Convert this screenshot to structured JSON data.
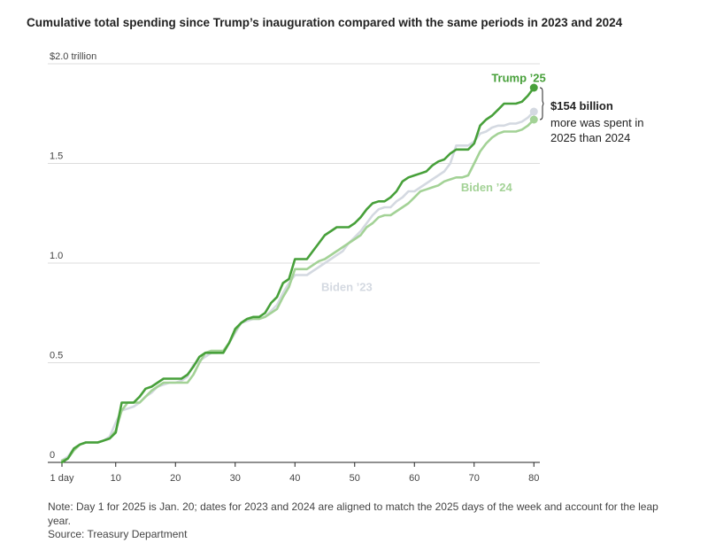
{
  "title": "Cumulative total spending since Trump’s inauguration compared with the same periods in 2023 and 2024",
  "note": "Note: Day 1 for 2025 is Jan. 20; dates for 2023 and 2024 are aligned to match the 2025 days of the week and account for the leap year.",
  "source": "Source: Treasury Department",
  "colors": {
    "trump25": "#47a03a",
    "biden24": "#a3d296",
    "biden23": "#d4d9e1",
    "grid": "#dcdcdc",
    "axis": "#222222"
  },
  "annotation": {
    "headline": "$154 billion",
    "line1": "more was spent in",
    "line2": "2025 than 2024"
  },
  "chart_data": {
    "type": "line",
    "xlabel": "",
    "ylabel": "",
    "xlim": [
      1,
      81
    ],
    "ylim": [
      0,
      2.0
    ],
    "grid": true,
    "x_ticks": [
      {
        "value": 1,
        "label": "1 day"
      },
      {
        "value": 10,
        "label": "10"
      },
      {
        "value": 20,
        "label": "20"
      },
      {
        "value": 30,
        "label": "30"
      },
      {
        "value": 40,
        "label": "40"
      },
      {
        "value": 50,
        "label": "50"
      },
      {
        "value": 60,
        "label": "60"
      },
      {
        "value": 70,
        "label": "70"
      },
      {
        "value": 80,
        "label": "80"
      }
    ],
    "y_ticks": [
      {
        "value": 0,
        "label": "0"
      },
      {
        "value": 0.5,
        "label": "0.5"
      },
      {
        "value": 1.0,
        "label": "1.0"
      },
      {
        "value": 1.5,
        "label": "1.5"
      },
      {
        "value": 2.0,
        "label": "$2.0 trillion"
      }
    ],
    "series": [
      {
        "name": "Biden ’23",
        "color": "#d4d9e1",
        "points": [
          [
            1,
            0.01
          ],
          [
            2,
            0.03
          ],
          [
            3,
            0.07
          ],
          [
            4,
            0.09
          ],
          [
            5,
            0.1
          ],
          [
            6,
            0.1
          ],
          [
            7,
            0.1
          ],
          [
            8,
            0.11
          ],
          [
            9,
            0.13
          ],
          [
            10,
            0.2
          ],
          [
            11,
            0.26
          ],
          [
            12,
            0.27
          ],
          [
            13,
            0.28
          ],
          [
            14,
            0.3
          ],
          [
            15,
            0.33
          ],
          [
            16,
            0.35
          ],
          [
            17,
            0.38
          ],
          [
            18,
            0.39
          ],
          [
            19,
            0.4
          ],
          [
            20,
            0.4
          ],
          [
            21,
            0.41
          ],
          [
            22,
            0.43
          ],
          [
            23,
            0.49
          ],
          [
            24,
            0.51
          ],
          [
            25,
            0.53
          ],
          [
            26,
            0.55
          ],
          [
            27,
            0.55
          ],
          [
            28,
            0.56
          ],
          [
            29,
            0.6
          ],
          [
            30,
            0.65
          ],
          [
            31,
            0.7
          ],
          [
            32,
            0.71
          ],
          [
            33,
            0.72
          ],
          [
            34,
            0.72
          ],
          [
            35,
            0.73
          ],
          [
            36,
            0.76
          ],
          [
            37,
            0.79
          ],
          [
            38,
            0.85
          ],
          [
            39,
            0.9
          ],
          [
            40,
            0.94
          ],
          [
            41,
            0.94
          ],
          [
            42,
            0.94
          ],
          [
            43,
            0.96
          ],
          [
            44,
            0.98
          ],
          [
            45,
            1.0
          ],
          [
            46,
            1.02
          ],
          [
            47,
            1.04
          ],
          [
            48,
            1.06
          ],
          [
            49,
            1.1
          ],
          [
            50,
            1.13
          ],
          [
            51,
            1.16
          ],
          [
            52,
            1.2
          ],
          [
            53,
            1.24
          ],
          [
            54,
            1.27
          ],
          [
            55,
            1.28
          ],
          [
            56,
            1.28
          ],
          [
            57,
            1.31
          ],
          [
            58,
            1.33
          ],
          [
            59,
            1.36
          ],
          [
            60,
            1.36
          ],
          [
            61,
            1.38
          ],
          [
            62,
            1.4
          ],
          [
            63,
            1.42
          ],
          [
            64,
            1.44
          ],
          [
            65,
            1.46
          ],
          [
            66,
            1.5
          ],
          [
            67,
            1.59
          ],
          [
            68,
            1.59
          ],
          [
            69,
            1.59
          ],
          [
            70,
            1.61
          ],
          [
            71,
            1.65
          ],
          [
            72,
            1.66
          ],
          [
            73,
            1.68
          ],
          [
            74,
            1.69
          ],
          [
            75,
            1.69
          ],
          [
            76,
            1.7
          ],
          [
            77,
            1.7
          ],
          [
            78,
            1.71
          ],
          [
            79,
            1.73
          ],
          [
            80,
            1.76
          ]
        ]
      },
      {
        "name": "Biden ’24",
        "color": "#a3d296",
        "points": [
          [
            1,
            0.01
          ],
          [
            2,
            0.02
          ],
          [
            3,
            0.06
          ],
          [
            4,
            0.09
          ],
          [
            5,
            0.1
          ],
          [
            6,
            0.1
          ],
          [
            7,
            0.1
          ],
          [
            8,
            0.11
          ],
          [
            9,
            0.12
          ],
          [
            10,
            0.16
          ],
          [
            11,
            0.26
          ],
          [
            12,
            0.3
          ],
          [
            13,
            0.3
          ],
          [
            14,
            0.3
          ],
          [
            15,
            0.33
          ],
          [
            16,
            0.36
          ],
          [
            17,
            0.38
          ],
          [
            18,
            0.4
          ],
          [
            19,
            0.4
          ],
          [
            20,
            0.4
          ],
          [
            21,
            0.4
          ],
          [
            22,
            0.4
          ],
          [
            23,
            0.44
          ],
          [
            24,
            0.5
          ],
          [
            25,
            0.55
          ],
          [
            26,
            0.56
          ],
          [
            27,
            0.56
          ],
          [
            28,
            0.56
          ],
          [
            29,
            0.6
          ],
          [
            30,
            0.66
          ],
          [
            31,
            0.7
          ],
          [
            32,
            0.72
          ],
          [
            33,
            0.72
          ],
          [
            34,
            0.72
          ],
          [
            35,
            0.73
          ],
          [
            36,
            0.75
          ],
          [
            37,
            0.77
          ],
          [
            38,
            0.83
          ],
          [
            39,
            0.88
          ],
          [
            40,
            0.97
          ],
          [
            41,
            0.97
          ],
          [
            42,
            0.97
          ],
          [
            43,
            0.99
          ],
          [
            44,
            1.01
          ],
          [
            45,
            1.02
          ],
          [
            46,
            1.04
          ],
          [
            47,
            1.06
          ],
          [
            48,
            1.08
          ],
          [
            49,
            1.1
          ],
          [
            50,
            1.12
          ],
          [
            51,
            1.14
          ],
          [
            52,
            1.18
          ],
          [
            53,
            1.2
          ],
          [
            54,
            1.23
          ],
          [
            55,
            1.24
          ],
          [
            56,
            1.24
          ],
          [
            57,
            1.26
          ],
          [
            58,
            1.28
          ],
          [
            59,
            1.3
          ],
          [
            60,
            1.33
          ],
          [
            61,
            1.36
          ],
          [
            62,
            1.37
          ],
          [
            63,
            1.38
          ],
          [
            64,
            1.39
          ],
          [
            65,
            1.41
          ],
          [
            66,
            1.42
          ],
          [
            67,
            1.43
          ],
          [
            68,
            1.43
          ],
          [
            69,
            1.44
          ],
          [
            70,
            1.5
          ],
          [
            71,
            1.56
          ],
          [
            72,
            1.6
          ],
          [
            73,
            1.63
          ],
          [
            74,
            1.65
          ],
          [
            75,
            1.66
          ],
          [
            76,
            1.66
          ],
          [
            77,
            1.66
          ],
          [
            78,
            1.67
          ],
          [
            79,
            1.69
          ],
          [
            80,
            1.72
          ]
        ]
      },
      {
        "name": "Trump ’25",
        "color": "#47a03a",
        "points": [
          [
            1,
            0.0
          ],
          [
            2,
            0.02
          ],
          [
            3,
            0.07
          ],
          [
            4,
            0.09
          ],
          [
            5,
            0.1
          ],
          [
            6,
            0.1
          ],
          [
            7,
            0.1
          ],
          [
            8,
            0.11
          ],
          [
            9,
            0.12
          ],
          [
            10,
            0.15
          ],
          [
            11,
            0.3
          ],
          [
            12,
            0.3
          ],
          [
            13,
            0.3
          ],
          [
            14,
            0.33
          ],
          [
            15,
            0.37
          ],
          [
            16,
            0.38
          ],
          [
            17,
            0.4
          ],
          [
            18,
            0.42
          ],
          [
            19,
            0.42
          ],
          [
            20,
            0.42
          ],
          [
            21,
            0.42
          ],
          [
            22,
            0.44
          ],
          [
            23,
            0.48
          ],
          [
            24,
            0.53
          ],
          [
            25,
            0.55
          ],
          [
            26,
            0.55
          ],
          [
            27,
            0.55
          ],
          [
            28,
            0.55
          ],
          [
            29,
            0.6
          ],
          [
            30,
            0.67
          ],
          [
            31,
            0.7
          ],
          [
            32,
            0.72
          ],
          [
            33,
            0.73
          ],
          [
            34,
            0.73
          ],
          [
            35,
            0.75
          ],
          [
            36,
            0.8
          ],
          [
            37,
            0.83
          ],
          [
            38,
            0.9
          ],
          [
            39,
            0.92
          ],
          [
            40,
            1.02
          ],
          [
            41,
            1.02
          ],
          [
            42,
            1.02
          ],
          [
            43,
            1.06
          ],
          [
            44,
            1.1
          ],
          [
            45,
            1.14
          ],
          [
            46,
            1.16
          ],
          [
            47,
            1.18
          ],
          [
            48,
            1.18
          ],
          [
            49,
            1.18
          ],
          [
            50,
            1.2
          ],
          [
            51,
            1.23
          ],
          [
            52,
            1.27
          ],
          [
            53,
            1.3
          ],
          [
            54,
            1.31
          ],
          [
            55,
            1.31
          ],
          [
            56,
            1.33
          ],
          [
            57,
            1.36
          ],
          [
            58,
            1.41
          ],
          [
            59,
            1.43
          ],
          [
            60,
            1.44
          ],
          [
            61,
            1.45
          ],
          [
            62,
            1.46
          ],
          [
            63,
            1.49
          ],
          [
            64,
            1.51
          ],
          [
            65,
            1.52
          ],
          [
            66,
            1.55
          ],
          [
            67,
            1.57
          ],
          [
            68,
            1.57
          ],
          [
            69,
            1.57
          ],
          [
            70,
            1.6
          ],
          [
            71,
            1.69
          ],
          [
            72,
            1.72
          ],
          [
            73,
            1.74
          ],
          [
            74,
            1.77
          ],
          [
            75,
            1.8
          ],
          [
            76,
            1.8
          ],
          [
            77,
            1.8
          ],
          [
            78,
            1.81
          ],
          [
            79,
            1.84
          ],
          [
            80,
            1.88
          ]
        ]
      }
    ],
    "series_labels": [
      {
        "text": "Trump ’25",
        "series": "Trump ’25",
        "x": 72.9,
        "y": 1.91
      },
      {
        "text": "Biden ’24",
        "series": "Biden ’24",
        "x": 67.8,
        "y": 1.36
      },
      {
        "text": "Biden ’23",
        "series": "Biden ’23",
        "x": 44.4,
        "y": 0.86
      }
    ]
  }
}
